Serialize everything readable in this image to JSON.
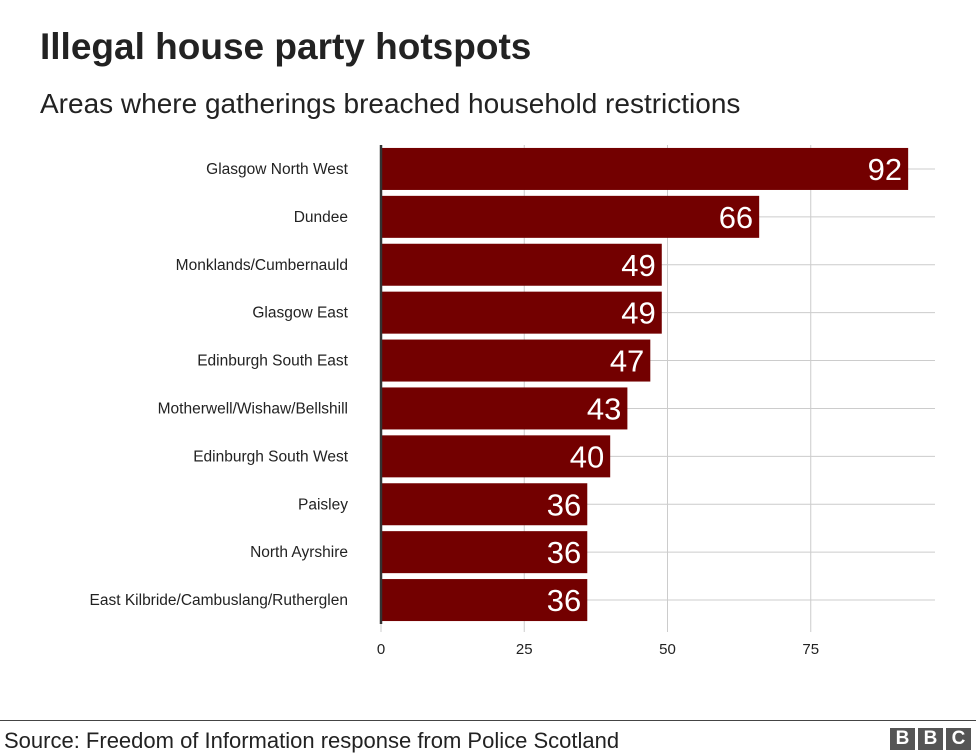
{
  "chart_data": {
    "type": "bar",
    "orientation": "horizontal",
    "title": "Illegal house party hotspots",
    "subtitle": "Areas where gatherings breached household restrictions",
    "categories": [
      "Glasgow North West",
      "Dundee",
      "Monklands/Cumbernauld",
      "Glasgow East",
      "Edinburgh South East",
      "Motherwell/Wishaw/Bellshill",
      "Edinburgh South West",
      "Paisley",
      "North Ayrshire",
      "East Kilbride/Cambuslang/Rutherglen"
    ],
    "values": [
      92,
      66,
      49,
      49,
      47,
      43,
      40,
      36,
      36,
      36
    ],
    "xticks": [
      0,
      25,
      50,
      75
    ],
    "xlim": [
      0,
      97
    ],
    "grid": true,
    "bar_color": "#730000",
    "source": "Source: Freedom of Information response from Police Scotland",
    "logo": "BBC"
  }
}
